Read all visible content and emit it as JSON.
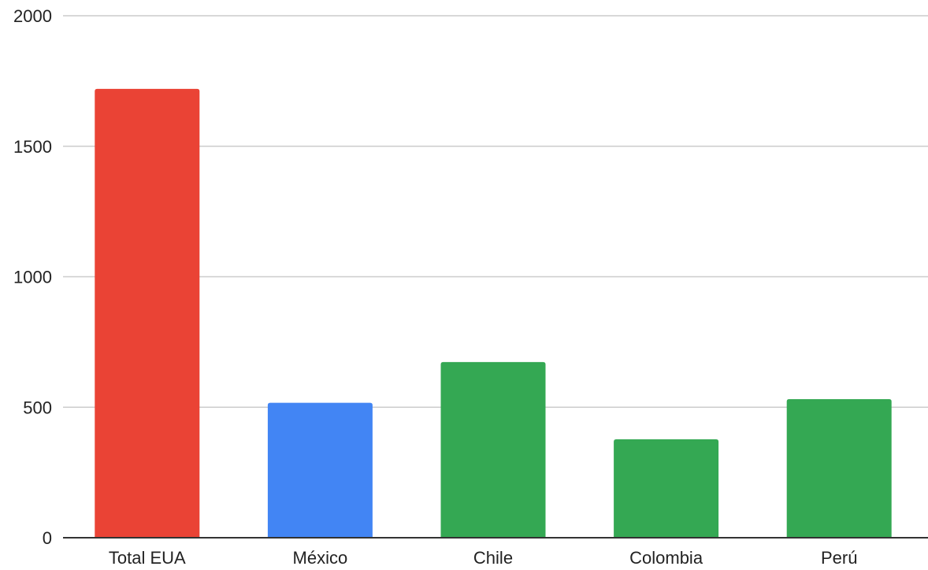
{
  "chart_data": {
    "type": "bar",
    "title": "",
    "xlabel": "",
    "ylabel": "",
    "categories": [
      "Total EUA",
      "México",
      "Chile",
      "Colombia",
      "Perú"
    ],
    "values": [
      1720,
      517,
      673,
      377,
      531
    ],
    "bar_colors": [
      "#ea4335",
      "#4285f4",
      "#34a853",
      "#34a853",
      "#34a853"
    ],
    "ylim": [
      0,
      2000
    ],
    "yticks": [
      0,
      500,
      1000,
      1500,
      2000
    ],
    "grid": true,
    "legend": "none"
  }
}
